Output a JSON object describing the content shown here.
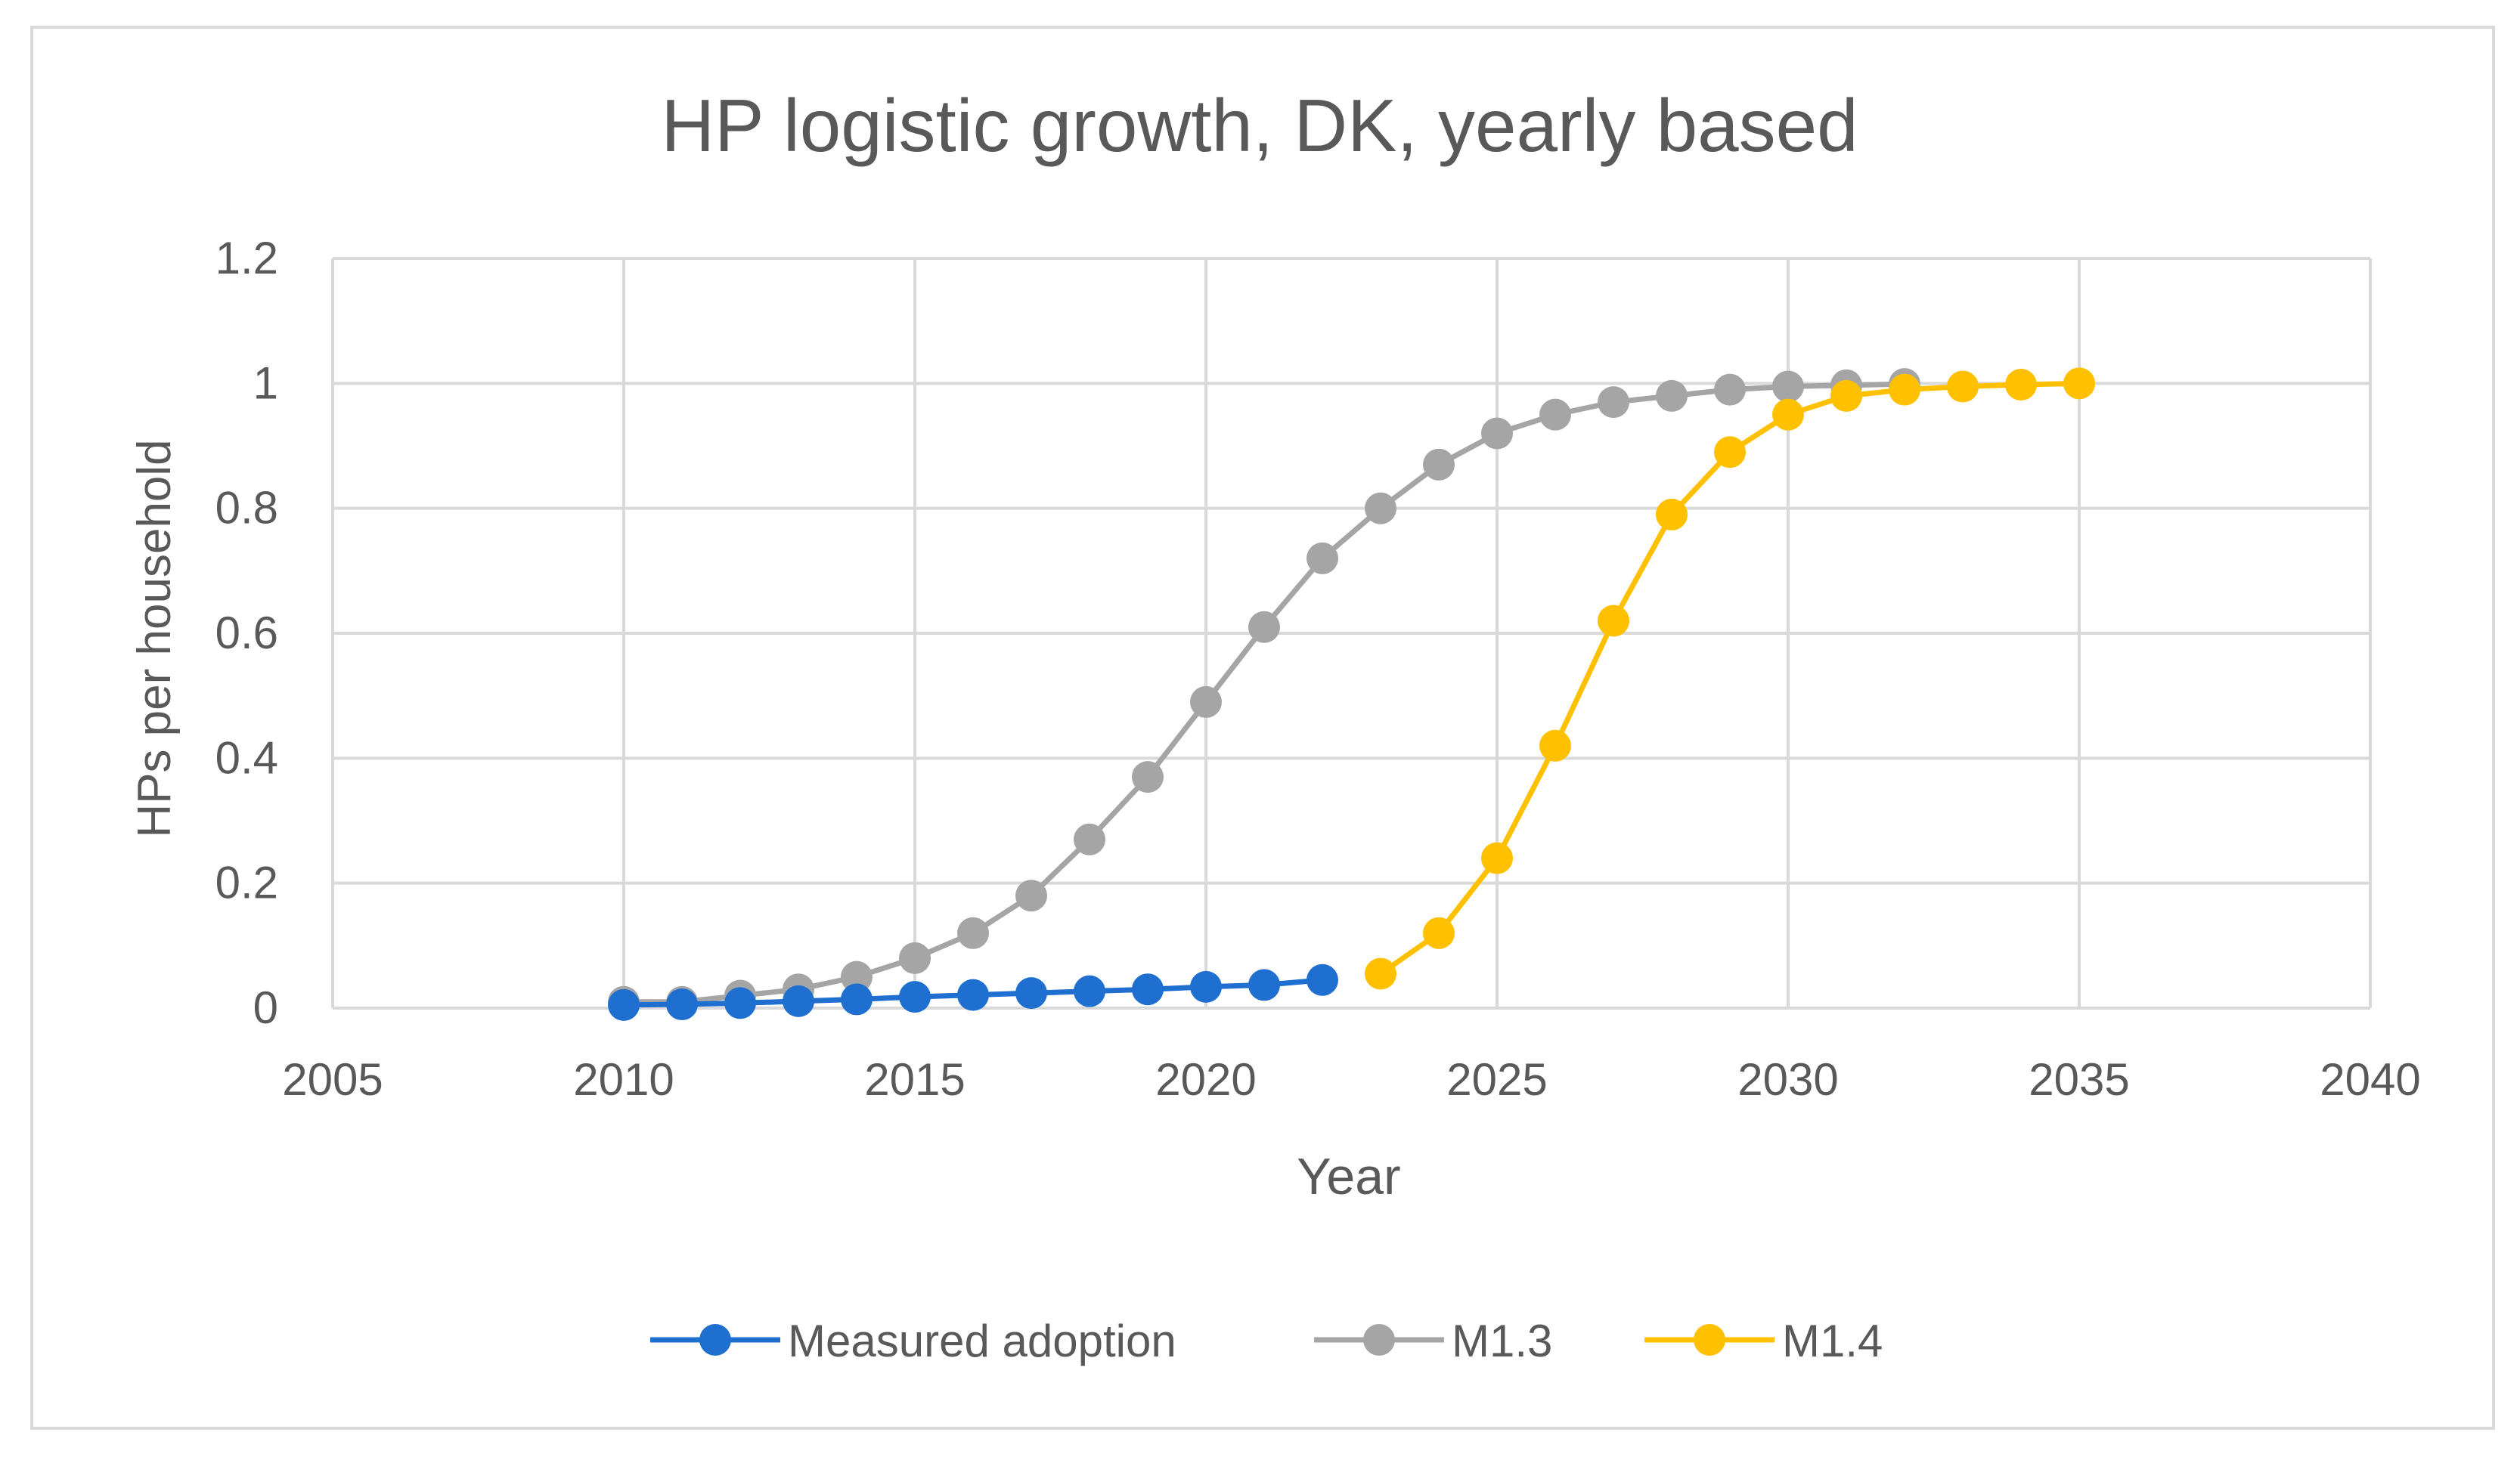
{
  "chart_data": {
    "type": "line",
    "title": "HP logistic growth, DK, yearly based",
    "xlabel": "Year",
    "ylabel": "HPs per household",
    "xlim": [
      2005,
      2040
    ],
    "ylim": [
      0,
      1.2
    ],
    "x_ticks": [
      "2005",
      "2010",
      "2015",
      "2020",
      "2025",
      "2030",
      "2035",
      "2040"
    ],
    "y_ticks": [
      "0",
      "0.2",
      "0.4",
      "0.6",
      "0.8",
      "1",
      "1.2"
    ],
    "grid": true,
    "legend_position": "bottom",
    "series": [
      {
        "name": "M1.3",
        "color": "#a5a5a5",
        "x": [
          2010,
          2011,
          2012,
          2013,
          2014,
          2015,
          2016,
          2017,
          2018,
          2019,
          2020,
          2021,
          2022,
          2023,
          2024,
          2025,
          2026,
          2027,
          2028,
          2029,
          2030,
          2031,
          2032
        ],
        "y": [
          0.01,
          0.01,
          0.02,
          0.03,
          0.05,
          0.08,
          0.12,
          0.18,
          0.27,
          0.37,
          0.49,
          0.61,
          0.72,
          0.8,
          0.87,
          0.92,
          0.95,
          0.97,
          0.98,
          0.99,
          0.995,
          0.997,
          0.999
        ]
      },
      {
        "name": "Measured adoption",
        "color": "#1f6fd0",
        "x": [
          2010,
          2011,
          2012,
          2013,
          2014,
          2015,
          2016,
          2017,
          2018,
          2019,
          2020,
          2021,
          2022
        ],
        "y": [
          0.005,
          0.006,
          0.008,
          0.011,
          0.014,
          0.018,
          0.021,
          0.024,
          0.027,
          0.03,
          0.034,
          0.037,
          0.045
        ]
      },
      {
        "name": "M1.4",
        "color": "#ffc000",
        "x": [
          2023,
          2024,
          2025,
          2026,
          2027,
          2028,
          2029,
          2030,
          2031,
          2032,
          2033,
          2034,
          2035
        ],
        "y": [
          0.055,
          0.12,
          0.24,
          0.42,
          0.62,
          0.79,
          0.89,
          0.95,
          0.98,
          0.99,
          0.995,
          0.998,
          1.0
        ]
      }
    ],
    "legend_order": [
      "Measured adoption",
      "M1.3",
      "M1.4"
    ]
  }
}
